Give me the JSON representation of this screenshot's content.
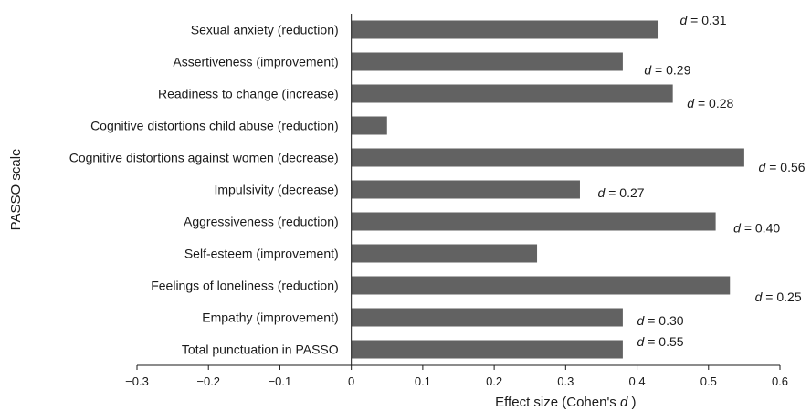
{
  "chart_data": {
    "type": "bar",
    "orientation": "horizontal",
    "xlabel": {
      "prefix": "Effect size (Cohen's ",
      "italic": "d",
      "suffix": " )"
    },
    "ylabel": "PASSO scale",
    "xlim": [
      -0.3,
      0.6
    ],
    "xticks": [
      "−0.3",
      "−0.2",
      "−0.1",
      "0",
      "0.1",
      "0.2",
      "0.3",
      "0.4",
      "0.5",
      "0.6"
    ],
    "grid": false,
    "legend": "none",
    "bar_color": "#626262",
    "categories": [
      "Sexual anxiety (reduction)",
      "Assertiveness (improvement)",
      "Readiness to change (increase)",
      "Cognitive distortions child abuse (reduction)",
      "Cognitive distortions against women (decrease)",
      "Impulsivity (decrease)",
      "Aggressiveness (reduction)",
      "Self-esteem (improvement)",
      "Feelings of loneliness (reduction)",
      "Empathy (improvement)",
      "Total punctuation in PASSO"
    ],
    "values": [
      0.43,
      0.38,
      0.45,
      0.05,
      0.55,
      0.32,
      0.51,
      0.26,
      0.53,
      0.38,
      0.38
    ],
    "annotations": [
      {
        "category": "Sexual anxiety (reduction)",
        "value": "0.31",
        "at": 0.46,
        "row_offset": -0.3
      },
      {
        "category": "Assertiveness (improvement)",
        "value": "0.29",
        "at": 0.41,
        "row_offset": 0.25
      },
      {
        "category": "Readiness to change (increase)",
        "value": "0.28",
        "at": 0.47,
        "row_offset": 0.3
      },
      {
        "category": "Cognitive distortions against women (decrease)",
        "value": "0.56",
        "at": 0.57,
        "row_offset": 0.3
      },
      {
        "category": "Impulsivity (decrease)",
        "value": "0.27",
        "at": 0.345,
        "row_offset": 0.1
      },
      {
        "category": "Aggressiveness (reduction)",
        "value": "0.40",
        "at": 0.535,
        "row_offset": 0.2
      },
      {
        "category": "Feelings of loneliness (reduction)",
        "value": "0.25",
        "at": 0.565,
        "row_offset": 0.35
      },
      {
        "category": "Empathy (improvement)",
        "value": "0.30",
        "at": 0.4,
        "row_offset": 0.1
      },
      {
        "category": "Total punctuation in PASSO",
        "value": "0.55",
        "at": 0.4,
        "row_offset": -0.25
      }
    ]
  }
}
